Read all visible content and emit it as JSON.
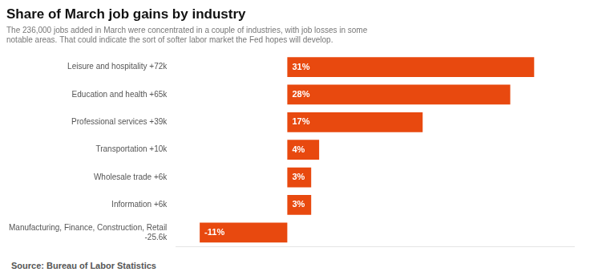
{
  "chart_data": {
    "type": "bar",
    "orientation": "horizontal",
    "title": "Share of March job gains by industry",
    "subtitle": "The 236,000 jobs added in March were concentrated in a couple of industries, with job losses in some\nnotable areas. That could indicate the sort of softer labor market the Fed hopes will develop.",
    "annotations": [
      "Source: Bureau of Labor Statistics"
    ],
    "categories": [
      "Manufacturing, Finance, Construction, Retail\n-25.6k",
      "Information +6k",
      "Wholesale trade +6k",
      "Transportation +10k",
      "Professional services +39k",
      "Education and health +65k",
      "Leisure and hospitality +72k"
    ],
    "values": [
      -11,
      3,
      3,
      4,
      17,
      28,
      31
    ],
    "value_labels": [
      "-11%",
      "3%",
      "3%",
      "4%",
      "17%",
      "28%",
      "31%"
    ],
    "data_labels": true,
    "color": "#E8490F",
    "xlim": [
      -14,
      36
    ],
    "grid": false,
    "tick_labels": "y"
  }
}
